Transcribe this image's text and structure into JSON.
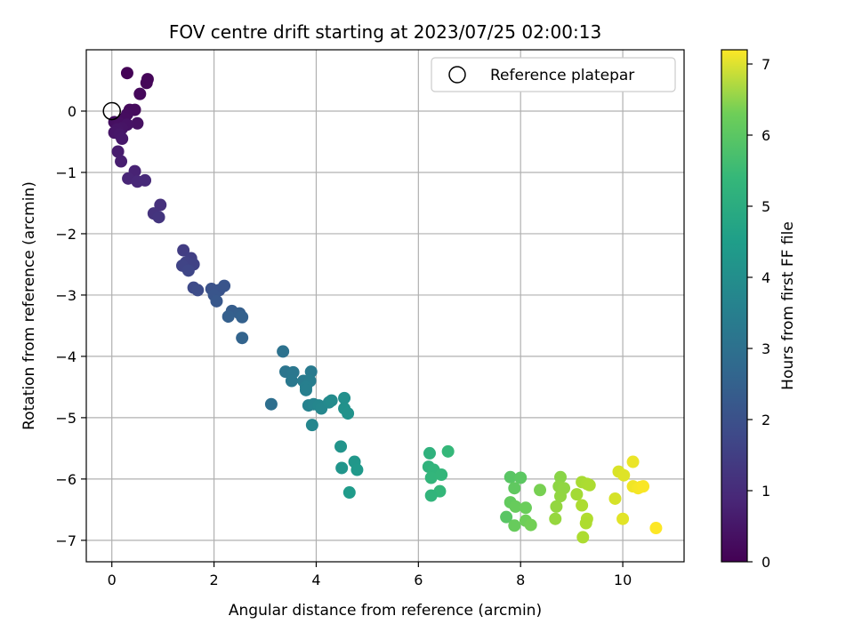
{
  "chart_data": {
    "type": "scatter",
    "title": "FOV centre drift starting at 2023/07/25 02:00:13",
    "xlabel": "Angular distance from reference (arcmin)",
    "ylabel": "Rotation from reference (arcmin)",
    "xlim": [
      -0.5,
      11.2
    ],
    "ylim": [
      -7.35,
      1.0
    ],
    "xticks": [
      0,
      2,
      4,
      6,
      8,
      10
    ],
    "yticks": [
      0,
      -1,
      -2,
      -3,
      -4,
      -5,
      -6,
      -7
    ],
    "grid": true,
    "legend": {
      "placement": "top-right",
      "entries": [
        "Reference platepar"
      ]
    },
    "reference_point": {
      "x": 0,
      "y": 0
    },
    "colorbar": {
      "label": "Hours from first FF file",
      "min": 0,
      "max": 7.2,
      "ticks": [
        0,
        1,
        2,
        3,
        4,
        5,
        6,
        7
      ],
      "colormap": "viridis"
    },
    "points": [
      {
        "x": 0.3,
        "y": 0.62,
        "c": 0.05
      },
      {
        "x": 0.7,
        "y": 0.52,
        "c": 0.1
      },
      {
        "x": 0.68,
        "y": 0.46,
        "c": 0.12
      },
      {
        "x": 0.55,
        "y": 0.28,
        "c": 0.15
      },
      {
        "x": 0.35,
        "y": 0.02,
        "c": 0.18
      },
      {
        "x": 0.45,
        "y": 0.02,
        "c": 0.2
      },
      {
        "x": 0.3,
        "y": -0.05,
        "c": 0.22
      },
      {
        "x": 0.25,
        "y": -0.12,
        "c": 0.25
      },
      {
        "x": 0.05,
        "y": -0.18,
        "c": 0.28
      },
      {
        "x": 0.15,
        "y": -0.2,
        "c": 0.3
      },
      {
        "x": 0.5,
        "y": -0.2,
        "c": 0.32
      },
      {
        "x": 0.3,
        "y": -0.22,
        "c": 0.35
      },
      {
        "x": 0.2,
        "y": -0.28,
        "c": 0.38
      },
      {
        "x": 0.1,
        "y": -0.3,
        "c": 0.4
      },
      {
        "x": 0.05,
        "y": -0.35,
        "c": 0.42
      },
      {
        "x": 0.15,
        "y": -0.38,
        "c": 0.45
      },
      {
        "x": 0.2,
        "y": -0.45,
        "c": 0.48
      },
      {
        "x": 0.12,
        "y": -0.66,
        "c": 0.55
      },
      {
        "x": 0.18,
        "y": -0.82,
        "c": 0.6
      },
      {
        "x": 0.45,
        "y": -0.98,
        "c": 0.7
      },
      {
        "x": 0.32,
        "y": -1.1,
        "c": 0.75
      },
      {
        "x": 0.5,
        "y": -1.15,
        "c": 0.8
      },
      {
        "x": 0.65,
        "y": -1.13,
        "c": 0.85
      },
      {
        "x": 0.95,
        "y": -1.53,
        "c": 1.0
      },
      {
        "x": 0.82,
        "y": -1.67,
        "c": 1.05
      },
      {
        "x": 0.92,
        "y": -1.73,
        "c": 1.1
      },
      {
        "x": 1.4,
        "y": -2.27,
        "c": 1.3
      },
      {
        "x": 1.55,
        "y": -2.4,
        "c": 1.35
      },
      {
        "x": 1.45,
        "y": -2.47,
        "c": 1.4
      },
      {
        "x": 1.6,
        "y": -2.5,
        "c": 1.42
      },
      {
        "x": 1.38,
        "y": -2.52,
        "c": 1.45
      },
      {
        "x": 1.5,
        "y": -2.6,
        "c": 1.5
      },
      {
        "x": 1.6,
        "y": -2.88,
        "c": 1.6
      },
      {
        "x": 1.68,
        "y": -2.92,
        "c": 1.65
      },
      {
        "x": 1.95,
        "y": -2.9,
        "c": 1.8
      },
      {
        "x": 2.1,
        "y": -2.92,
        "c": 1.85
      },
      {
        "x": 2.2,
        "y": -2.85,
        "c": 1.88
      },
      {
        "x": 2.0,
        "y": -3.0,
        "c": 1.9
      },
      {
        "x": 2.05,
        "y": -3.1,
        "c": 1.95
      },
      {
        "x": 2.35,
        "y": -3.26,
        "c": 2.1
      },
      {
        "x": 2.5,
        "y": -3.3,
        "c": 2.15
      },
      {
        "x": 2.28,
        "y": -3.35,
        "c": 2.18
      },
      {
        "x": 2.55,
        "y": -3.36,
        "c": 2.2
      },
      {
        "x": 2.55,
        "y": -3.7,
        "c": 2.3
      },
      {
        "x": 3.35,
        "y": -3.92,
        "c": 2.7
      },
      {
        "x": 3.4,
        "y": -4.25,
        "c": 2.8
      },
      {
        "x": 3.55,
        "y": -4.26,
        "c": 2.85
      },
      {
        "x": 3.9,
        "y": -4.25,
        "c": 2.95
      },
      {
        "x": 3.52,
        "y": -4.4,
        "c": 2.9
      },
      {
        "x": 3.75,
        "y": -4.4,
        "c": 3.0
      },
      {
        "x": 3.88,
        "y": -4.4,
        "c": 3.05
      },
      {
        "x": 3.8,
        "y": -4.5,
        "c": 3.1
      },
      {
        "x": 3.8,
        "y": -4.55,
        "c": 3.12
      },
      {
        "x": 3.12,
        "y": -4.78,
        "c": 2.6
      },
      {
        "x": 3.85,
        "y": -4.8,
        "c": 3.2
      },
      {
        "x": 3.95,
        "y": -4.78,
        "c": 3.25
      },
      {
        "x": 4.05,
        "y": -4.8,
        "c": 3.3
      },
      {
        "x": 4.1,
        "y": -4.85,
        "c": 3.35
      },
      {
        "x": 4.25,
        "y": -4.75,
        "c": 3.4
      },
      {
        "x": 4.3,
        "y": -4.72,
        "c": 3.45
      },
      {
        "x": 4.55,
        "y": -4.68,
        "c": 3.6
      },
      {
        "x": 4.55,
        "y": -4.85,
        "c": 3.62
      },
      {
        "x": 4.62,
        "y": -4.93,
        "c": 3.65
      },
      {
        "x": 3.92,
        "y": -5.12,
        "c": 3.3
      },
      {
        "x": 4.48,
        "y": -5.47,
        "c": 3.7
      },
      {
        "x": 4.5,
        "y": -5.82,
        "c": 3.75
      },
      {
        "x": 4.75,
        "y": -5.72,
        "c": 3.8
      },
      {
        "x": 4.8,
        "y": -5.85,
        "c": 3.85
      },
      {
        "x": 4.65,
        "y": -6.22,
        "c": 3.9
      },
      {
        "x": 6.22,
        "y": -5.58,
        "c": 4.6
      },
      {
        "x": 6.2,
        "y": -5.8,
        "c": 4.65
      },
      {
        "x": 6.3,
        "y": -5.85,
        "c": 4.7
      },
      {
        "x": 6.25,
        "y": -5.98,
        "c": 4.72
      },
      {
        "x": 6.45,
        "y": -5.93,
        "c": 4.75
      },
      {
        "x": 6.58,
        "y": -5.55,
        "c": 4.8
      },
      {
        "x": 6.42,
        "y": -6.2,
        "c": 4.78
      },
      {
        "x": 6.25,
        "y": -6.27,
        "c": 4.7
      },
      {
        "x": 7.8,
        "y": -5.97,
        "c": 5.3
      },
      {
        "x": 8.0,
        "y": -5.98,
        "c": 5.35
      },
      {
        "x": 7.88,
        "y": -6.15,
        "c": 5.4
      },
      {
        "x": 7.8,
        "y": -6.38,
        "c": 5.45
      },
      {
        "x": 7.9,
        "y": -6.45,
        "c": 5.5
      },
      {
        "x": 8.1,
        "y": -6.47,
        "c": 5.55
      },
      {
        "x": 7.72,
        "y": -6.62,
        "c": 5.3
      },
      {
        "x": 8.1,
        "y": -6.68,
        "c": 5.6
      },
      {
        "x": 8.2,
        "y": -6.75,
        "c": 5.65
      },
      {
        "x": 7.88,
        "y": -6.76,
        "c": 5.5
      },
      {
        "x": 8.38,
        "y": -6.18,
        "c": 5.7
      },
      {
        "x": 8.78,
        "y": -5.97,
        "c": 5.9
      },
      {
        "x": 8.75,
        "y": -6.12,
        "c": 5.95
      },
      {
        "x": 8.85,
        "y": -6.15,
        "c": 5.98
      },
      {
        "x": 8.78,
        "y": -6.28,
        "c": 6.0
      },
      {
        "x": 8.7,
        "y": -6.45,
        "c": 6.02
      },
      {
        "x": 8.68,
        "y": -6.65,
        "c": 6.05
      },
      {
        "x": 9.1,
        "y": -6.25,
        "c": 6.2
      },
      {
        "x": 9.2,
        "y": -6.05,
        "c": 6.25
      },
      {
        "x": 9.3,
        "y": -6.08,
        "c": 6.28
      },
      {
        "x": 9.35,
        "y": -6.1,
        "c": 6.3
      },
      {
        "x": 9.2,
        "y": -6.43,
        "c": 6.3
      },
      {
        "x": 9.3,
        "y": -6.65,
        "c": 6.35
      },
      {
        "x": 9.28,
        "y": -6.72,
        "c": 6.32
      },
      {
        "x": 9.22,
        "y": -6.95,
        "c": 6.3
      },
      {
        "x": 9.92,
        "y": -5.88,
        "c": 6.8
      },
      {
        "x": 10.02,
        "y": -5.94,
        "c": 6.85
      },
      {
        "x": 10.2,
        "y": -5.72,
        "c": 7.0
      },
      {
        "x": 9.85,
        "y": -6.32,
        "c": 6.75
      },
      {
        "x": 10.2,
        "y": -6.12,
        "c": 7.05
      },
      {
        "x": 10.3,
        "y": -6.15,
        "c": 7.1
      },
      {
        "x": 10.35,
        "y": -6.13,
        "c": 7.12
      },
      {
        "x": 10.4,
        "y": -6.12,
        "c": 7.15
      },
      {
        "x": 10.0,
        "y": -6.65,
        "c": 6.9
      },
      {
        "x": 10.65,
        "y": -6.8,
        "c": 7.2
      }
    ]
  }
}
